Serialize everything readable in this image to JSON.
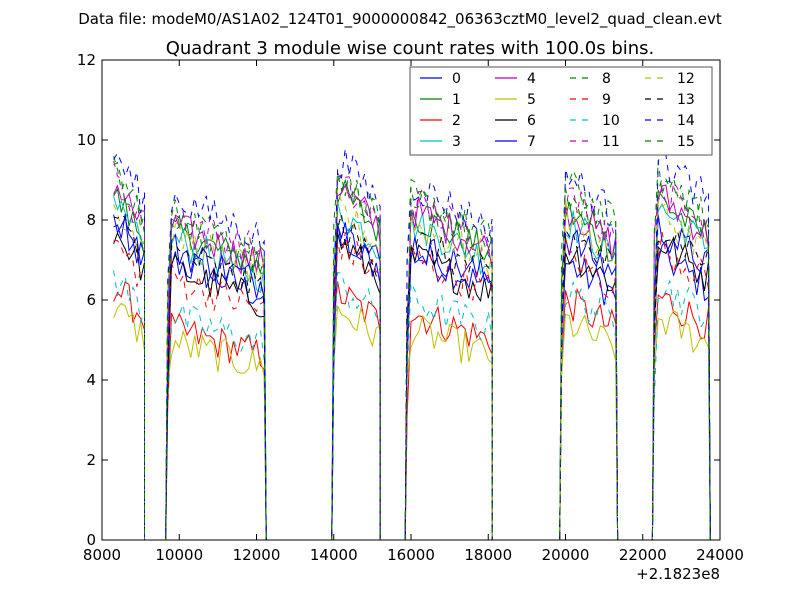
{
  "suptitle": "Data file: modeM0/AS1A02_124T01_9000000842_06363cztM0_level2_quad_clean.evt",
  "chart_data": {
    "type": "line",
    "title": "Quadrant 3 module wise count rates with 100.0s bins.",
    "xlabel": "",
    "ylabel": "",
    "x_offset_label": "+2.1823e8",
    "xlim": [
      8000,
      24000
    ],
    "ylim": [
      0,
      12
    ],
    "xticks": [
      8000,
      10000,
      12000,
      14000,
      16000,
      18000,
      20000,
      22000,
      24000
    ],
    "yticks": [
      0,
      2,
      4,
      6,
      8,
      10,
      12
    ],
    "grid": false,
    "legend_position": "top-right",
    "legend_columns": 4,
    "gti_segments": [
      {
        "start": 8300,
        "end": 9050
      },
      {
        "start": 9700,
        "end": 12200
      },
      {
        "start": 14000,
        "end": 15150
      },
      {
        "start": 15900,
        "end": 18050
      },
      {
        "start": 19900,
        "end": 21300
      },
      {
        "start": 22300,
        "end": 23700
      }
    ],
    "series": [
      {
        "name": "0",
        "style": "solid",
        "color": "#0000ff",
        "levels": [
          7.4,
          6.5,
          7.2,
          6.7,
          6.5,
          6.7
        ]
      },
      {
        "name": "1",
        "style": "solid",
        "color": "#008000",
        "levels": [
          8.0,
          7.2,
          8.2,
          7.6,
          7.7,
          8.0
        ]
      },
      {
        "name": "2",
        "style": "solid",
        "color": "#ff0000",
        "levels": [
          5.9,
          4.9,
          5.8,
          5.3,
          5.6,
          5.7
        ]
      },
      {
        "name": "3",
        "style": "solid",
        "color": "#00bfbf",
        "levels": [
          7.7,
          7.0,
          7.8,
          7.4,
          7.5,
          7.8
        ]
      },
      {
        "name": "4",
        "style": "solid",
        "color": "#bf00bf",
        "levels": [
          8.3,
          7.3,
          8.3,
          7.7,
          7.8,
          8.1
        ]
      },
      {
        "name": "5",
        "style": "solid",
        "color": "#bfbf00",
        "levels": [
          5.4,
          4.6,
          5.4,
          4.9,
          5.1,
          5.2
        ]
      },
      {
        "name": "6",
        "style": "solid",
        "color": "#000000",
        "levels": [
          7.2,
          6.3,
          7.0,
          6.6,
          6.8,
          7.0
        ]
      },
      {
        "name": "7",
        "style": "solid",
        "color": "#0000ff",
        "levels": [
          7.6,
          6.8,
          7.4,
          6.9,
          7.1,
          7.3
        ]
      },
      {
        "name": "8",
        "style": "dashed",
        "color": "#008000",
        "levels": [
          8.6,
          7.6,
          8.6,
          8.0,
          8.4,
          8.5
        ]
      },
      {
        "name": "9",
        "style": "dashed",
        "color": "#ff0000",
        "levels": [
          6.9,
          6.1,
          7.0,
          6.6,
          6.7,
          6.9
        ]
      },
      {
        "name": "10",
        "style": "dashed",
        "color": "#00bfbf",
        "levels": [
          6.1,
          5.2,
          6.0,
          5.6,
          5.8,
          6.0
        ]
      },
      {
        "name": "11",
        "style": "dashed",
        "color": "#bf00bf",
        "levels": [
          8.4,
          7.6,
          8.4,
          7.9,
          8.1,
          8.3
        ]
      },
      {
        "name": "12",
        "style": "dashed",
        "color": "#bfbf00",
        "levels": [
          7.8,
          7.1,
          7.8,
          7.4,
          7.6,
          7.7
        ]
      },
      {
        "name": "13",
        "style": "dashed",
        "color": "#000000",
        "levels": [
          7.5,
          6.7,
          7.4,
          7.0,
          7.2,
          7.4
        ]
      },
      {
        "name": "14",
        "style": "dashed",
        "color": "#0000ff",
        "levels": [
          9.0,
          8.0,
          9.0,
          8.3,
          8.6,
          9.0
        ]
      },
      {
        "name": "15",
        "style": "dashed",
        "color": "#008000",
        "levels": [
          8.5,
          7.4,
          8.6,
          7.9,
          8.2,
          8.4
        ]
      }
    ]
  }
}
